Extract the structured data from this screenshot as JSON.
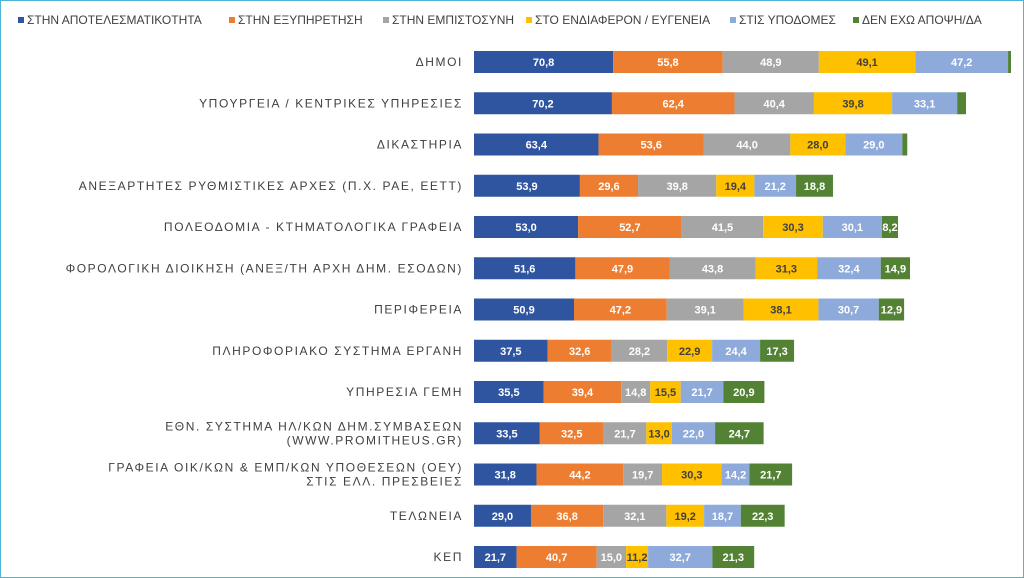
{
  "chart_data": {
    "type": "bar",
    "orientation": "horizontal",
    "stacked": true,
    "legend_position": "top",
    "grid": false,
    "categories": [
      "ΔΗΜΟΙ",
      "ΥΠΟΥΡΓΕΙΑ / ΚΕΝΤΡΙΚΕΣ ΥΠΗΡΕΣΙΕΣ",
      "ΔΙΚΑΣΤΗΡΙΑ",
      "ΑΝΕΞΑΡΤΗΤΕΣ ΡΥΘΜΙΣΤΙΚΕΣ ΑΡΧΕΣ (Π.Χ. ΡΑΕ, ΕΕΤΤ)",
      "ΠΟΛΕΟΔΟΜΙΑ - ΚΤΗΜΑΤΟΛΟΓΙΚΑ ΓΡΑΦΕΙΑ",
      "ΦΟΡΟΛΟΓΙΚΗ ΔΙΟΙΚΗΣΗ (ΑΝΕΞ/ΤΗ ΑΡΧΗ ΔΗΜ. ΕΣΟΔΩΝ)",
      "ΠΕΡΙΦΕΡΕΙΑ",
      "ΠΛΗΡΟΦΟΡΙΑΚΟ ΣΥΣΤΗΜΑ ΕΡΓΑΝΗ",
      "ΥΠΗΡΕΣΙΑ ΓΕΜΗ",
      "ΕΘΝ. ΣΥΣΤΗΜΑ ΗΛ/ΚΩΝ ΔΗΜ.ΣΥΜΒΑΣΕΩΝ (WWW.PROMITHEUS.GR)",
      "ΓΡΑΦΕΙΑ ΟΙΚ/ΚΩΝ & ΕΜΠ/ΚΩΝ ΥΠΟΘΕΣΕΩΝ (ΟΕΥ) ΣΤΙΣ ΕΛΛ. ΠΡΕΣΒΕΙΕΣ",
      "ΤΕΛΩΝΕΙΑ",
      "ΚΕΠ"
    ],
    "series": [
      {
        "name": "ΣΤΗΝ ΑΠΟΤΕΛΕΣΜΑΤΙΚΟΤΗΤΑ",
        "color": "#2f55a0",
        "values": [
          70.8,
          70.2,
          63.4,
          53.9,
          53.0,
          51.6,
          50.9,
          37.5,
          35.5,
          33.5,
          31.8,
          29.0,
          21.7
        ],
        "labels": [
          "70,8",
          "70,2",
          "63,4",
          "53,9",
          "53,0",
          "51,6",
          "50,9",
          "37,5",
          "35,5",
          "33,5",
          "31,8",
          "29,0",
          "21,7"
        ]
      },
      {
        "name": "ΣΤΗΝ ΕΞΥΠΗΡΕΤΗΣΗ",
        "color": "#ed7d31",
        "values": [
          55.8,
          62.4,
          53.6,
          29.6,
          52.7,
          47.9,
          47.2,
          32.6,
          39.4,
          32.5,
          44.2,
          36.8,
          40.7
        ],
        "labels": [
          "55,8",
          "62,4",
          "53,6",
          "29,6",
          "52,7",
          "47,9",
          "47,2",
          "32,6",
          "39,4",
          "32,5",
          "44,2",
          "36,8",
          "40,7"
        ]
      },
      {
        "name": "ΣΤΗΝ ΕΜΠΙΣΤΟΣΥΝΗ",
        "color": "#a5a5a5",
        "values": [
          48.9,
          40.4,
          44.0,
          39.8,
          41.5,
          43.8,
          39.1,
          28.2,
          14.8,
          21.7,
          19.7,
          32.1,
          15.0
        ],
        "labels": [
          "48,9",
          "40,4",
          "44,0",
          "39,8",
          "41,5",
          "43,8",
          "39,1",
          "28,2",
          "14,8",
          "21,7",
          "19,7",
          "32,1",
          "15,0"
        ]
      },
      {
        "name": "ΣΤΟ ΕΝΔΙΑΦΕΡΟΝ / ΕΥΓΕΝΕΙΑ",
        "color": "#ffc000",
        "values": [
          49.1,
          39.8,
          28.0,
          19.4,
          30.3,
          31.3,
          38.1,
          22.9,
          15.5,
          13.0,
          30.3,
          19.2,
          11.2
        ],
        "labels": [
          "49,1",
          "39,8",
          "28,0",
          "19,4",
          "30,3",
          "31,3",
          "38,1",
          "22,9",
          "15,5",
          "13,0",
          "30,3",
          "19,2",
          "11,2"
        ]
      },
      {
        "name": "ΣΤΙΣ ΥΠΟΔΟΜΕΣ",
        "color": "#8eaadb",
        "values": [
          47.2,
          33.1,
          29.0,
          21.2,
          30.1,
          32.4,
          30.7,
          24.4,
          21.7,
          22.0,
          14.2,
          18.7,
          32.7
        ],
        "labels": [
          "47,2",
          "33,1",
          "29,0",
          "21,2",
          "30,1",
          "32,4",
          "30,7",
          "24,4",
          "21,7",
          "22,0",
          "14,2",
          "18,7",
          "32,7"
        ]
      },
      {
        "name": "ΔΕΝ ΕΧΩ ΑΠΟΨΗ/ΔΑ",
        "color": "#548235",
        "values": [
          1.5,
          4.5,
          2.5,
          18.8,
          8.2,
          14.9,
          12.9,
          17.3,
          20.9,
          24.7,
          21.7,
          22.3,
          21.3
        ],
        "labels": [
          "",
          "",
          "",
          "18,8",
          "8,2",
          "14,9",
          "12,9",
          "17,3",
          "20,9",
          "24,7",
          "21,7",
          "22,3",
          "21,3"
        ]
      }
    ]
  }
}
